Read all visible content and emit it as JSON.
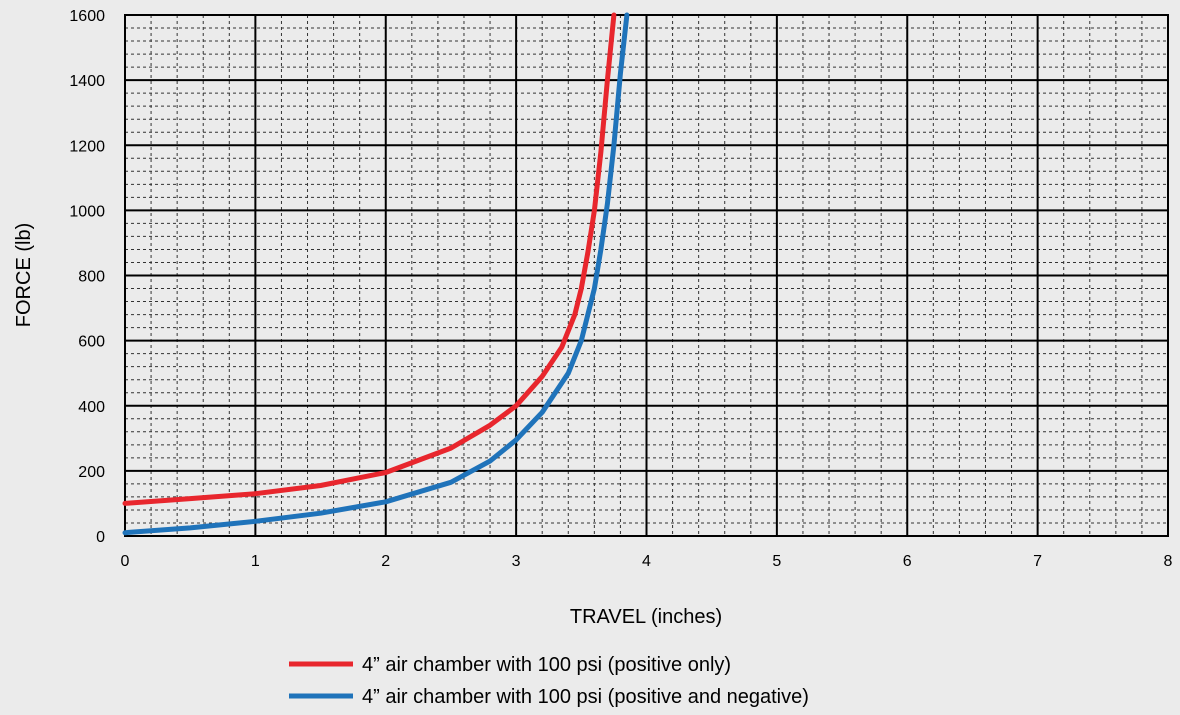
{
  "chart_data": {
    "type": "line",
    "title": "",
    "xlabel": "TRAVEL (inches)",
    "ylabel": "FORCE (lb)",
    "xlim": [
      0,
      8
    ],
    "ylim": [
      0,
      1600
    ],
    "xticks": [
      0,
      1,
      2,
      3,
      4,
      5,
      6,
      7,
      8
    ],
    "yticks": [
      0,
      200,
      400,
      600,
      800,
      1000,
      1200,
      1400,
      1600
    ],
    "x_tick_labels": [
      "0",
      "1",
      "2",
      "3",
      "4",
      "5",
      "6",
      "7",
      "8"
    ],
    "y_tick_labels": [
      "0",
      "200",
      "400",
      "600",
      "800",
      "1000",
      "1200",
      "1400",
      "1600"
    ],
    "grid": true,
    "minor_grid": true,
    "legend_position": "bottom-center",
    "series": [
      {
        "name": "4” air chamber with 100 psi (positive only)",
        "color": "#e8262d",
        "x": [
          0,
          0.5,
          1.0,
          1.5,
          2.0,
          2.5,
          2.8,
          3.0,
          3.2,
          3.35,
          3.45,
          3.5,
          3.55,
          3.6,
          3.65,
          3.7,
          3.75
        ],
        "y": [
          100,
          115,
          130,
          155,
          195,
          270,
          340,
          400,
          490,
          580,
          680,
          760,
          870,
          1000,
          1180,
          1400,
          1600
        ]
      },
      {
        "name": "4” air chamber with 100 psi (positive and negative)",
        "color": "#1f73ba",
        "x": [
          0,
          0.5,
          1.0,
          1.5,
          2.0,
          2.5,
          2.8,
          3.0,
          3.2,
          3.4,
          3.5,
          3.6,
          3.65,
          3.7,
          3.75,
          3.8,
          3.85
        ],
        "y": [
          10,
          25,
          45,
          70,
          105,
          165,
          230,
          295,
          380,
          500,
          600,
          760,
          880,
          1020,
          1200,
          1420,
          1600
        ]
      }
    ]
  }
}
